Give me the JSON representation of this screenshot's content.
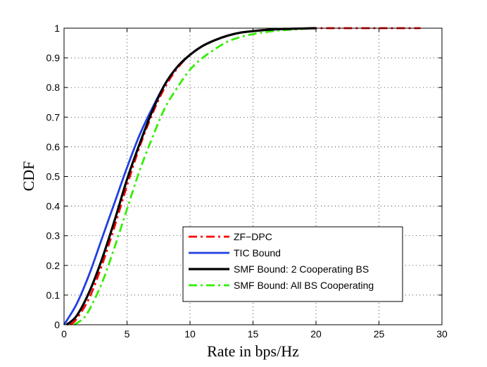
{
  "chart_data": {
    "type": "line",
    "title": "",
    "xlabel": "Rate in bps/Hz",
    "ylabel": "CDF",
    "xlim": [
      0,
      30
    ],
    "ylim": [
      0,
      1
    ],
    "xticks": [
      0,
      5,
      10,
      15,
      20,
      25,
      30
    ],
    "yticks": [
      0,
      0.1,
      0.2,
      0.3,
      0.4,
      0.5,
      0.6,
      0.7,
      0.8,
      0.9,
      1
    ],
    "grid": true,
    "legend_position": "bottom-right",
    "series": [
      {
        "name": "ZF−DPC",
        "color": "#ff0000",
        "style": "dashdot",
        "x": [
          0.5,
          1,
          2,
          3,
          4,
          5,
          6,
          7,
          8,
          9,
          10,
          11,
          12,
          13,
          14,
          15,
          16,
          17,
          18,
          20,
          22,
          25,
          28.3
        ],
        "y": [
          0,
          0.02,
          0.09,
          0.2,
          0.33,
          0.47,
          0.6,
          0.71,
          0.8,
          0.865,
          0.91,
          0.94,
          0.96,
          0.975,
          0.985,
          0.99,
          0.994,
          0.997,
          0.998,
          1,
          1,
          1,
          1
        ]
      },
      {
        "name": "TIC Bound",
        "color": "#1f3fe0",
        "style": "solid",
        "x": [
          0,
          1,
          2,
          3,
          4,
          5,
          6,
          7,
          8,
          9,
          10,
          11,
          12,
          13,
          14,
          15,
          16,
          18,
          20
        ],
        "y": [
          0,
          0.07,
          0.17,
          0.29,
          0.41,
          0.53,
          0.64,
          0.73,
          0.81,
          0.87,
          0.91,
          0.94,
          0.96,
          0.975,
          0.985,
          0.99,
          0.994,
          0.998,
          1
        ]
      },
      {
        "name": "SMF Bound: 2 Cooperating BS",
        "color": "#000000",
        "style": "solid",
        "x": [
          0.2,
          1,
          2,
          3,
          4,
          5,
          6,
          7,
          8,
          9,
          10,
          11,
          12,
          13,
          14,
          15,
          16,
          17,
          18,
          20
        ],
        "y": [
          0,
          0.03,
          0.11,
          0.22,
          0.35,
          0.49,
          0.61,
          0.72,
          0.81,
          0.87,
          0.91,
          0.94,
          0.96,
          0.975,
          0.985,
          0.99,
          0.994,
          0.997,
          0.998,
          1
        ]
      },
      {
        "name": "SMF Bound: All BS Cooperating",
        "color": "#33ee00",
        "style": "dashdot",
        "x": [
          0.8,
          1.5,
          2,
          3,
          4,
          5,
          6,
          7,
          8,
          9,
          10,
          11,
          12,
          13,
          14,
          15,
          16,
          17,
          18,
          20
        ],
        "y": [
          0,
          0.02,
          0.05,
          0.14,
          0.26,
          0.39,
          0.52,
          0.63,
          0.73,
          0.8,
          0.86,
          0.9,
          0.93,
          0.955,
          0.97,
          0.98,
          0.987,
          0.992,
          0.995,
          1
        ]
      }
    ]
  }
}
